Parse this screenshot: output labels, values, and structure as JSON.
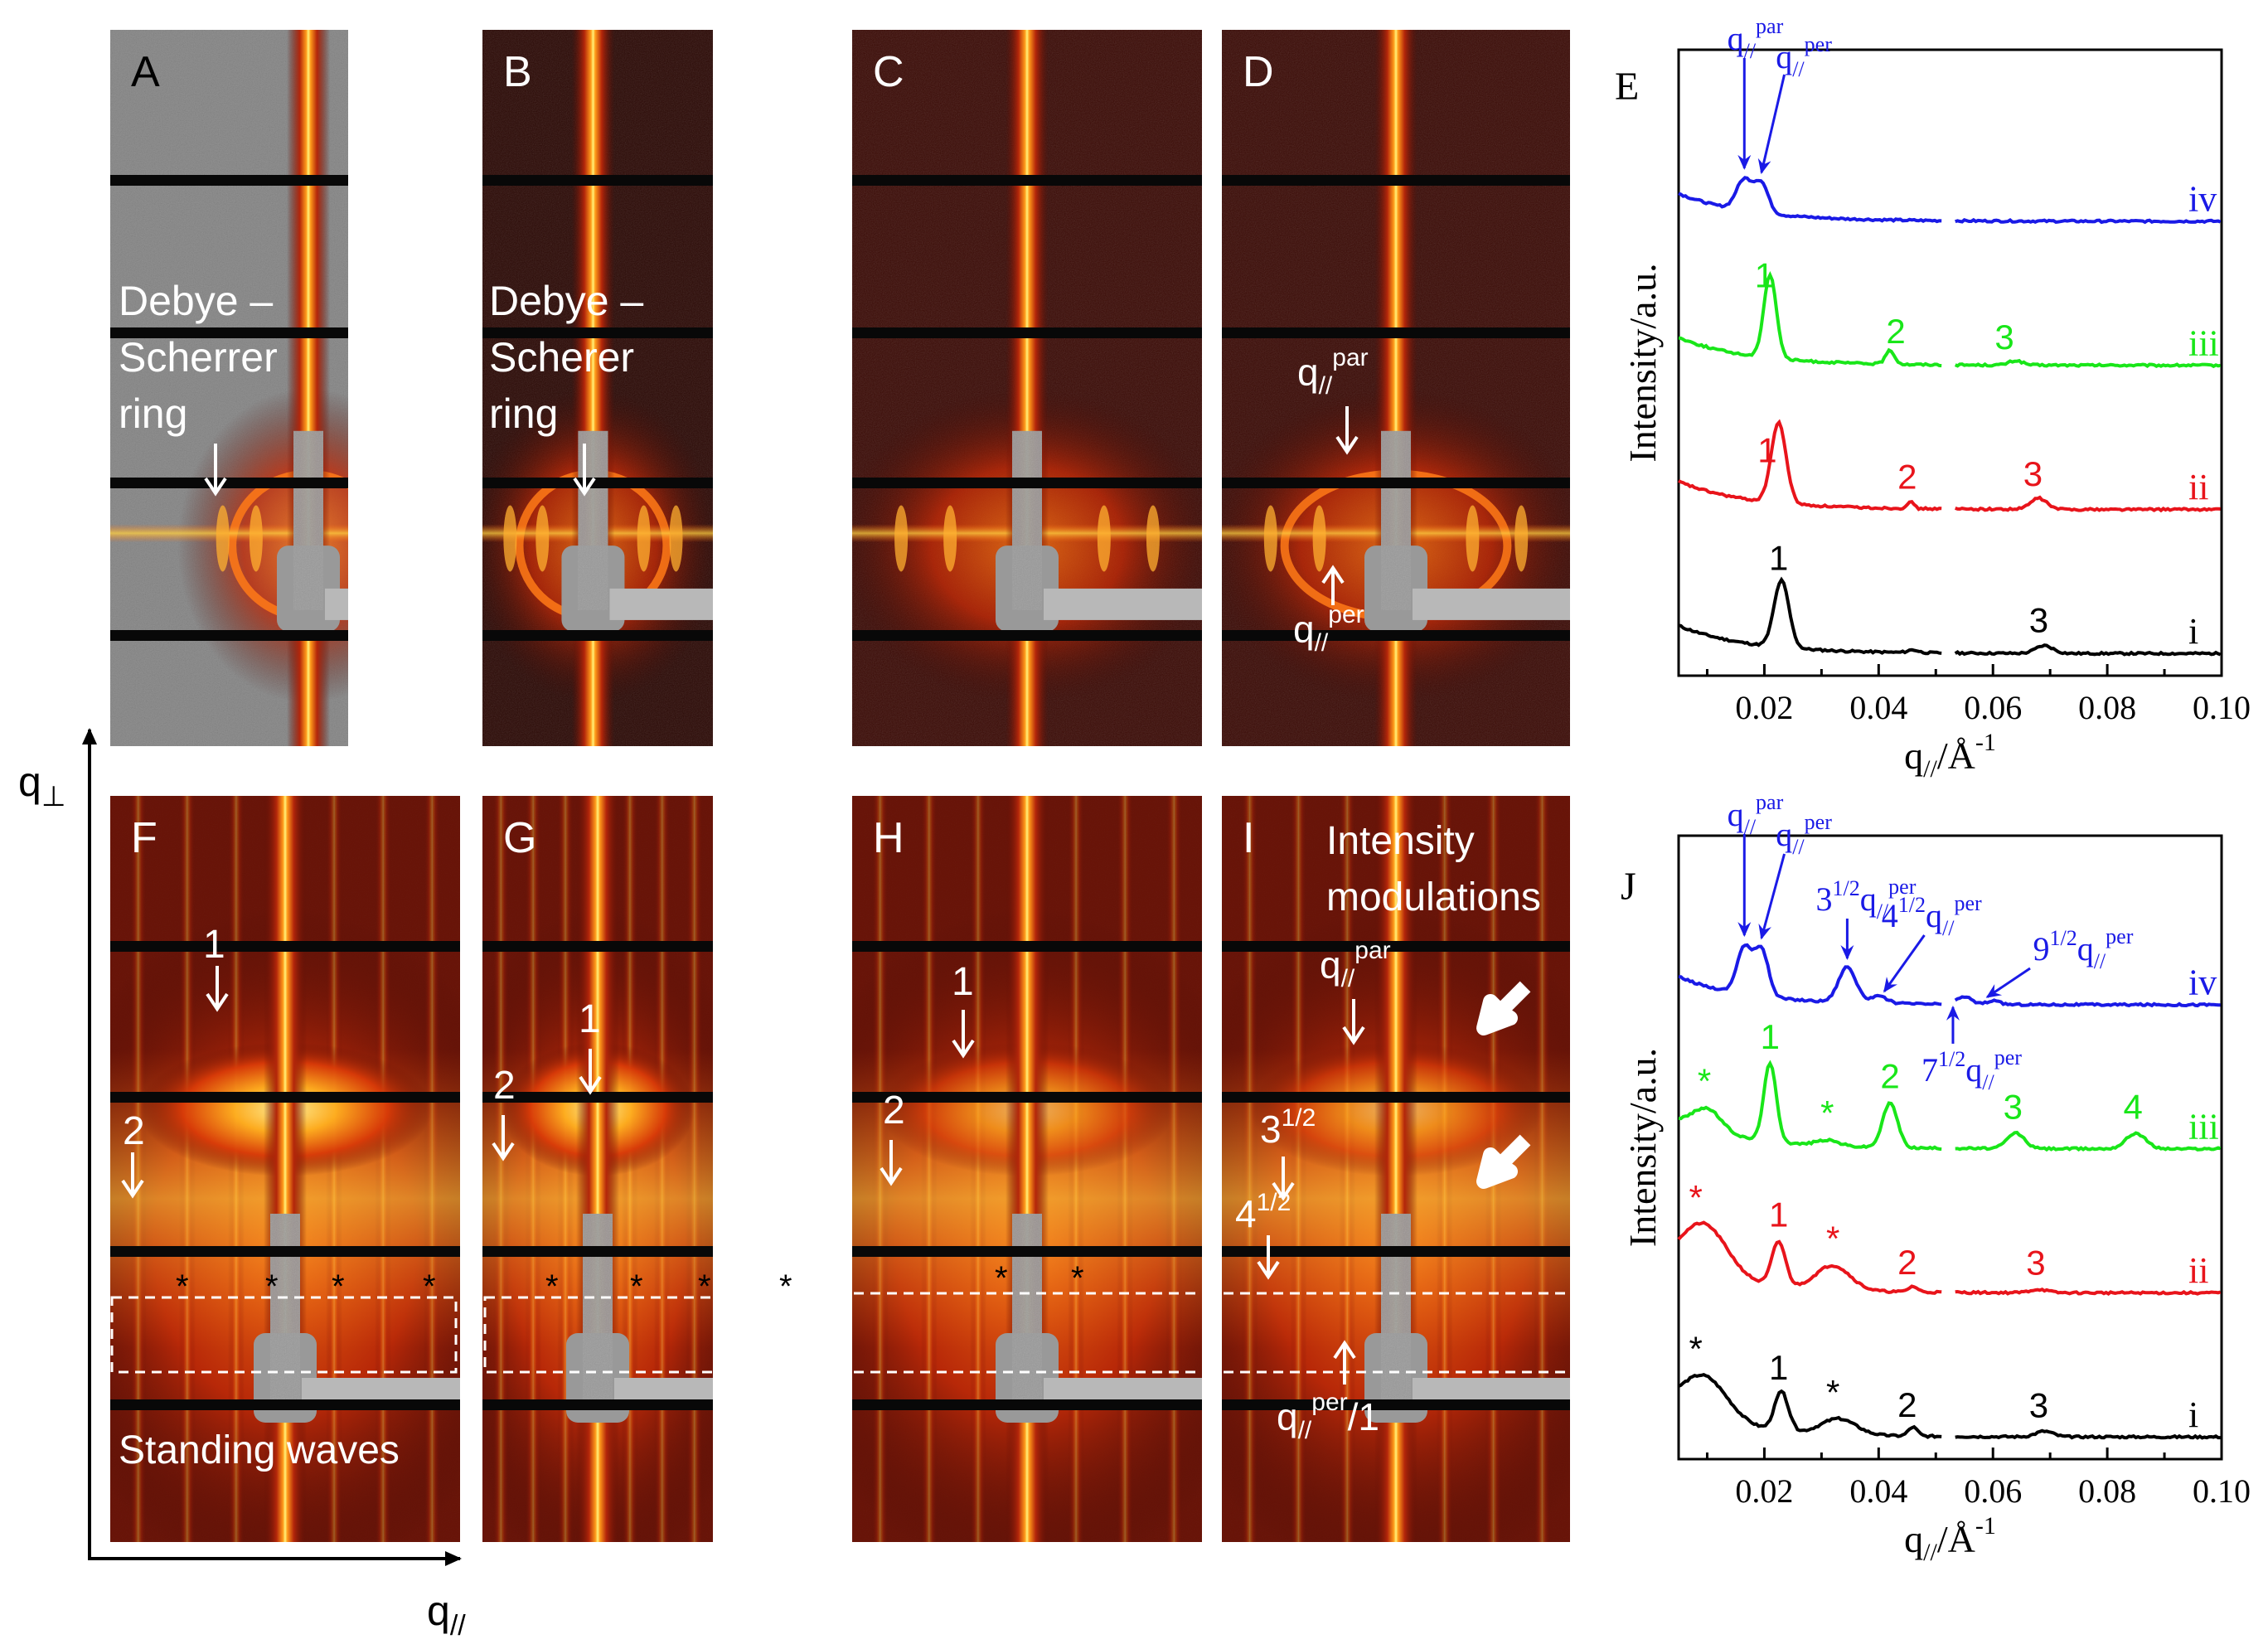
{
  "panels": {
    "A": {
      "letter": "A",
      "annotation": [
        "Debye –",
        "Scherrer",
        "ring"
      ]
    },
    "B": {
      "letter": "B",
      "annotation": [
        "Debye –",
        "Scherer",
        "ring"
      ]
    },
    "C": {
      "letter": "C"
    },
    "D": {
      "letter": "D",
      "q_par": "q",
      "q_par_sub": "//",
      "q_par_sup": "par",
      "q_per": "q",
      "q_per_sub": "//",
      "q_per_sup": "per"
    },
    "F": {
      "letter": "F",
      "order1": "1",
      "order2": "2",
      "bottom": "Standing waves",
      "stars": "*"
    },
    "G": {
      "letter": "G",
      "order1": "1",
      "order2": "2",
      "stars": "*"
    },
    "H": {
      "letter": "H",
      "order1": "1",
      "order2": "2",
      "stars": "*"
    },
    "I": {
      "letter": "I",
      "title_l1": "Intensity",
      "title_l2": "modulations",
      "q_par": "q",
      "q_par_sub": "//",
      "q_par_sup": "par",
      "root3": "3",
      "root3_sup": "1/2",
      "root4": "4",
      "root4_sup": "1/2",
      "q_per_1": "q",
      "q_per_1_sub": "//",
      "q_per_1_sup": "per",
      "q_per_1_tail": "/1"
    }
  },
  "axes_diagram": {
    "y_label": "q",
    "y_sub": "⊥",
    "x_label": "q",
    "x_sub": "//"
  },
  "colors": {
    "i": "#000000",
    "ii": "#e8141b",
    "iii": "#19e619",
    "iv": "#1a1ae6",
    "annot": "#1a1ae6"
  },
  "chart_data": [
    {
      "type": "line",
      "panel": "E",
      "xlabel": "q// / Å-1",
      "ylabel": "Intensity/a.u.",
      "xlim": [
        0.005,
        0.1
      ],
      "xticks": [
        "0.02",
        "0.04",
        "0.06",
        "0.08",
        "0.10"
      ],
      "gap": [
        0.051,
        0.053
      ],
      "series": [
        {
          "name": "i",
          "color": "#000000",
          "offset": 0.0,
          "base": 0.05,
          "peaks": [
            [
              0.023,
              0.6,
              0.0013
            ],
            [
              0.046,
              0.025,
              0.0009
            ],
            [
              0.069,
              0.07,
              0.0015
            ]
          ],
          "marks": [
            [
              "1",
              0.0225
            ],
            [
              "3",
              0.068
            ]
          ]
        },
        {
          "name": "ii",
          "color": "#e8141b",
          "offset": 1.0,
          "base": 0.05,
          "peaks": [
            [
              0.0225,
              0.72,
              0.0013
            ],
            [
              0.0455,
              0.06,
              0.0006
            ],
            [
              0.068,
              0.1,
              0.0014
            ]
          ],
          "marks": [
            [
              "1",
              0.0205
            ],
            [
              "2",
              0.045
            ],
            [
              "3",
              0.067
            ]
          ]
        },
        {
          "name": "iii",
          "color": "#19e619",
          "offset": 2.0,
          "base": 0.05,
          "peaks": [
            [
              0.021,
              0.75,
              0.0011
            ],
            [
              0.042,
              0.12,
              0.0008
            ],
            [
              0.064,
              0.04,
              0.0012
            ]
          ],
          "marks": [
            [
              "1",
              0.02
            ],
            [
              "2",
              0.043
            ],
            [
              "3",
              0.062
            ]
          ]
        },
        {
          "name": "iv",
          "color": "#1a1ae6",
          "offset": 3.0,
          "base": 0.05,
          "peaks": [
            [
              0.0165,
              0.28,
              0.0014
            ],
            [
              0.0195,
              0.26,
              0.0012
            ]
          ],
          "marks": []
        }
      ],
      "annotations": {
        "q_par": "q",
        "q_par_sub": "//",
        "q_par_sup": "par",
        "q_per": "q",
        "q_per_sub": "//",
        "q_per_sup": "per"
      }
    },
    {
      "type": "line",
      "panel": "J",
      "xlabel": "q// / Å-1",
      "ylabel": "Intensity/a.u.",
      "xlim": [
        0.005,
        0.1
      ],
      "xticks": [
        "0.02",
        "0.04",
        "0.06",
        "0.08",
        "0.10"
      ],
      "gap": [
        0.051,
        0.053
      ],
      "series": [
        {
          "name": "i",
          "color": "#000000",
          "offset": 0.0,
          "base": 0.05,
          "peaks": [
            [
              0.0095,
              0.38,
              0.004
            ],
            [
              0.023,
              0.35,
              0.0012
            ],
            [
              0.033,
              0.14,
              0.003
            ],
            [
              0.046,
              0.08,
              0.0008
            ],
            [
              0.069,
              0.05,
              0.0015
            ]
          ],
          "marks": [
            [
              "*",
              0.008
            ],
            [
              "1",
              0.0225
            ],
            [
              "*",
              0.032
            ],
            [
              "2",
              0.045
            ],
            [
              "3",
              0.068
            ]
          ]
        },
        {
          "name": "ii",
          "color": "#e8141b",
          "offset": 1.0,
          "base": 0.05,
          "peaks": [
            [
              0.0095,
              0.45,
              0.004
            ],
            [
              0.0225,
              0.4,
              0.0012
            ],
            [
              0.032,
              0.22,
              0.003
            ],
            [
              0.046,
              0.05,
              0.0008
            ],
            [
              0.068,
              0.03,
              0.0015
            ]
          ],
          "marks": [
            [
              "*",
              0.008
            ],
            [
              "1",
              0.0225
            ],
            [
              "*",
              0.032
            ],
            [
              "2",
              0.045
            ],
            [
              "3",
              0.0675
            ]
          ]
        },
        {
          "name": "iii",
          "color": "#19e619",
          "offset": 2.0,
          "base": 0.05,
          "peaks": [
            [
              0.01,
              0.2,
              0.0025
            ],
            [
              0.021,
              0.7,
              0.0011
            ],
            [
              0.031,
              0.05,
              0.002
            ],
            [
              0.042,
              0.4,
              0.0013
            ],
            [
              0.064,
              0.14,
              0.0015
            ],
            [
              0.085,
              0.14,
              0.0017
            ]
          ],
          "marks": [
            [
              "*",
              0.0095
            ],
            [
              "1",
              0.021
            ],
            [
              "*",
              0.031
            ],
            [
              "2",
              0.042
            ],
            [
              "3",
              0.0635
            ],
            [
              "4",
              0.0845
            ]
          ]
        },
        {
          "name": "iv",
          "color": "#1a1ae6",
          "offset": 3.0,
          "base": 0.05,
          "peaks": [
            [
              0.0165,
              0.42,
              0.0013
            ],
            [
              0.0195,
              0.42,
              0.0012
            ],
            [
              0.0345,
              0.32,
              0.0015
            ],
            [
              0.04,
              0.06,
              0.0015
            ],
            [
              0.055,
              0.07,
              0.0012
            ],
            [
              0.06,
              0.03,
              0.0012
            ]
          ],
          "marks": []
        }
      ],
      "annotations": {
        "q_par": "q",
        "q_par_sub": "//",
        "q_par_sup": "par",
        "q_per": "q",
        "q_per_sub": "//",
        "q_per_sup": "per",
        "r3": "3",
        "r4": "4",
        "r7": "7",
        "r9": "9",
        "half": "1/2"
      }
    }
  ]
}
